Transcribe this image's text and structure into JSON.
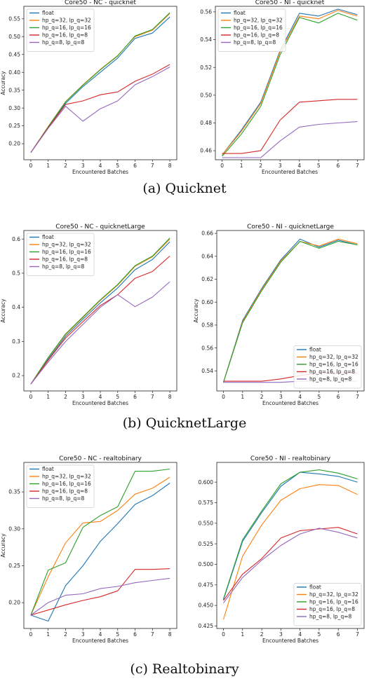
{
  "captions": [
    "(a) Quicknet",
    "(b) QuicknetLarge",
    "(c) Realtobinary"
  ],
  "series_colors": [
    "#1f77b4",
    "#ff7f0e",
    "#2ca02c",
    "#d62728",
    "#9467bd"
  ],
  "chart_data": [
    {
      "type": "line",
      "title": "Core50 - NC - quicknet",
      "xlabel": "Encountered Batches",
      "ylabel": "Accuracy",
      "x": [
        0,
        1,
        2,
        3,
        4,
        5,
        6,
        7,
        8
      ],
      "xlim": [
        -0.4,
        8.4
      ],
      "ylim": [
        0.155,
        0.585
      ],
      "yticks": [
        0.2,
        0.25,
        0.3,
        0.35,
        0.4,
        0.45,
        0.5,
        0.55
      ],
      "legend": "upper-left",
      "series": [
        {
          "name": "float",
          "values": [
            0.175,
            0.245,
            0.313,
            0.36,
            0.4,
            0.44,
            0.495,
            0.51,
            0.555
          ]
        },
        {
          "name": "hp_q=32, lp_q=32",
          "values": [
            0.175,
            0.248,
            0.318,
            0.365,
            0.408,
            0.447,
            0.5,
            0.518,
            0.565
          ]
        },
        {
          "name": "hp_q=16, lp_q=16",
          "values": [
            0.175,
            0.247,
            0.317,
            0.364,
            0.407,
            0.446,
            0.502,
            0.52,
            0.567
          ]
        },
        {
          "name": "hp_q=16, lp_q=8",
          "values": [
            0.175,
            0.245,
            0.31,
            0.32,
            0.337,
            0.345,
            0.375,
            0.395,
            0.422
          ]
        },
        {
          "name": "hp_q=8, lp_q=8",
          "values": [
            0.175,
            0.243,
            0.305,
            0.263,
            0.298,
            0.32,
            0.365,
            0.388,
            0.415
          ]
        }
      ]
    },
    {
      "type": "line",
      "title": "Core50 - NI - quicknet",
      "xlabel": "Encountered Batches",
      "ylabel": "",
      "x": [
        0,
        1,
        2,
        3,
        4,
        5,
        6,
        7
      ],
      "xlim": [
        -0.35,
        7.35
      ],
      "ylim": [
        0.4535,
        0.564
      ],
      "yticks": [
        0.46,
        0.48,
        0.5,
        0.52,
        0.54,
        0.56
      ],
      "legend": "upper-left",
      "series": [
        {
          "name": "float",
          "values": [
            0.457,
            0.475,
            0.495,
            0.532,
            0.559,
            0.557,
            0.562,
            0.558
          ]
        },
        {
          "name": "hp_q=32, lp_q=32",
          "values": [
            0.457,
            0.474,
            0.494,
            0.531,
            0.557,
            0.555,
            0.561,
            0.557
          ]
        },
        {
          "name": "hp_q=16, lp_q=16",
          "values": [
            0.456,
            0.472,
            0.492,
            0.529,
            0.556,
            0.552,
            0.559,
            0.554
          ]
        },
        {
          "name": "hp_q=16, lp_q=8",
          "values": [
            0.458,
            0.458,
            0.46,
            0.482,
            0.495,
            0.496,
            0.497,
            0.497
          ]
        },
        {
          "name": "hp_q=8, lp_q=8",
          "values": [
            0.455,
            0.455,
            0.455,
            0.467,
            0.477,
            0.479,
            0.48,
            0.481
          ]
        }
      ]
    },
    {
      "type": "line",
      "title": "Core50 - NC - quicknetLarge",
      "xlabel": "Encountered Batches",
      "ylabel": "Accuracy",
      "x": [
        0,
        1,
        2,
        3,
        4,
        5,
        6,
        7,
        8
      ],
      "xlim": [
        -0.4,
        8.4
      ],
      "ylim": [
        0.155,
        0.625
      ],
      "yticks": [
        0.2,
        0.3,
        0.4,
        0.5,
        0.6
      ],
      "legend": "upper-left",
      "series": [
        {
          "name": "float",
          "values": [
            0.175,
            0.248,
            0.315,
            0.365,
            0.413,
            0.457,
            0.51,
            0.54,
            0.592
          ]
        },
        {
          "name": "hp_q=32, lp_q=32",
          "values": [
            0.175,
            0.252,
            0.32,
            0.37,
            0.42,
            0.465,
            0.52,
            0.548,
            0.6
          ]
        },
        {
          "name": "hp_q=16, lp_q=16",
          "values": [
            0.175,
            0.253,
            0.322,
            0.372,
            0.422,
            0.467,
            0.522,
            0.55,
            0.603
          ]
        },
        {
          "name": "hp_q=16, lp_q=8",
          "values": [
            0.175,
            0.245,
            0.31,
            0.358,
            0.405,
            0.437,
            0.485,
            0.505,
            0.55
          ]
        },
        {
          "name": "hp_q=8, lp_q=8",
          "values": [
            0.175,
            0.24,
            0.3,
            0.35,
            0.4,
            0.437,
            0.402,
            0.43,
            0.475
          ]
        }
      ]
    },
    {
      "type": "line",
      "title": "Core50 - NI - quicknetLarge",
      "xlabel": "Encountered Batches",
      "ylabel": "Accuracy",
      "x": [
        0,
        1,
        2,
        3,
        4,
        5,
        6,
        7
      ],
      "xlim": [
        -0.35,
        7.35
      ],
      "ylim": [
        0.5225,
        0.6625
      ],
      "yticks": [
        0.54,
        0.56,
        0.58,
        0.6,
        0.62,
        0.64,
        0.66
      ],
      "legend": "lower-right",
      "series": [
        {
          "name": "float",
          "values": [
            0.53,
            0.584,
            0.612,
            0.637,
            0.655,
            0.648,
            0.654,
            0.65
          ]
        },
        {
          "name": "hp_q=32, lp_q=32",
          "values": [
            0.53,
            0.583,
            0.611,
            0.636,
            0.653,
            0.649,
            0.655,
            0.651
          ]
        },
        {
          "name": "hp_q=16, lp_q=16",
          "values": [
            0.53,
            0.582,
            0.61,
            0.635,
            0.653,
            0.647,
            0.653,
            0.65
          ]
        },
        {
          "name": "hp_q=16, lp_q=8",
          "values": [
            0.531,
            0.531,
            0.531,
            0.533,
            0.536,
            0.538,
            0.538,
            0.538
          ]
        },
        {
          "name": "hp_q=8, lp_q=8",
          "values": [
            0.53,
            0.53,
            0.53,
            0.53,
            0.531,
            0.531,
            0.531,
            0.531
          ]
        }
      ]
    },
    {
      "type": "line",
      "title": "Core50 - NC - realtobinary",
      "xlabel": "Encountered Batches",
      "ylabel": "Accuracy",
      "x": [
        0,
        1,
        2,
        3,
        4,
        5,
        6,
        7,
        8
      ],
      "xlim": [
        -0.4,
        8.4
      ],
      "ylim": [
        0.165,
        0.39
      ],
      "yticks": [
        0.2,
        0.25,
        0.3,
        0.35
      ],
      "legend": "upper-left",
      "series": [
        {
          "name": "float",
          "values": [
            0.183,
            0.175,
            0.223,
            0.25,
            0.283,
            0.307,
            0.333,
            0.345,
            0.362
          ]
        },
        {
          "name": "hp_q=32, lp_q=32",
          "values": [
            0.183,
            0.235,
            0.281,
            0.308,
            0.31,
            0.325,
            0.347,
            0.355,
            0.37
          ]
        },
        {
          "name": "hp_q=16, lp_q=16",
          "values": [
            0.183,
            0.244,
            0.254,
            0.302,
            0.318,
            0.33,
            0.378,
            0.378,
            0.381
          ]
        },
        {
          "name": "hp_q=16, lp_q=8",
          "values": [
            0.183,
            0.19,
            0.197,
            0.203,
            0.208,
            0.216,
            0.245,
            0.245,
            0.246
          ]
        },
        {
          "name": "hp_q=8, lp_q=8",
          "values": [
            0.183,
            0.2,
            0.21,
            0.212,
            0.219,
            0.222,
            0.227,
            0.23,
            0.233
          ]
        }
      ]
    },
    {
      "type": "line",
      "title": "Core50 - NI - realtobinary",
      "xlabel": "Encountered Batches",
      "ylabel": "",
      "x": [
        0,
        1,
        2,
        3,
        4,
        5,
        6,
        7
      ],
      "xlim": [
        -0.35,
        7.35
      ],
      "ylim": [
        0.422,
        0.624
      ],
      "yticks": [
        0.425,
        0.45,
        0.475,
        0.5,
        0.525,
        0.55,
        0.575,
        0.6
      ],
      "legend": "lower-right",
      "series": [
        {
          "name": "float",
          "values": [
            0.457,
            0.528,
            0.563,
            0.595,
            0.612,
            0.61,
            0.607,
            0.6
          ]
        },
        {
          "name": "hp_q=32, lp_q=32",
          "values": [
            0.433,
            0.51,
            0.548,
            0.578,
            0.592,
            0.597,
            0.596,
            0.585
          ]
        },
        {
          "name": "hp_q=16, lp_q=16",
          "values": [
            0.458,
            0.53,
            0.565,
            0.598,
            0.612,
            0.615,
            0.611,
            0.604
          ]
        },
        {
          "name": "hp_q=16, lp_q=8",
          "values": [
            0.456,
            0.488,
            0.507,
            0.532,
            0.541,
            0.543,
            0.545,
            0.537
          ]
        },
        {
          "name": "hp_q=8, lp_q=8",
          "values": [
            0.453,
            0.484,
            0.505,
            0.523,
            0.537,
            0.544,
            0.539,
            0.532
          ]
        }
      ]
    }
  ]
}
